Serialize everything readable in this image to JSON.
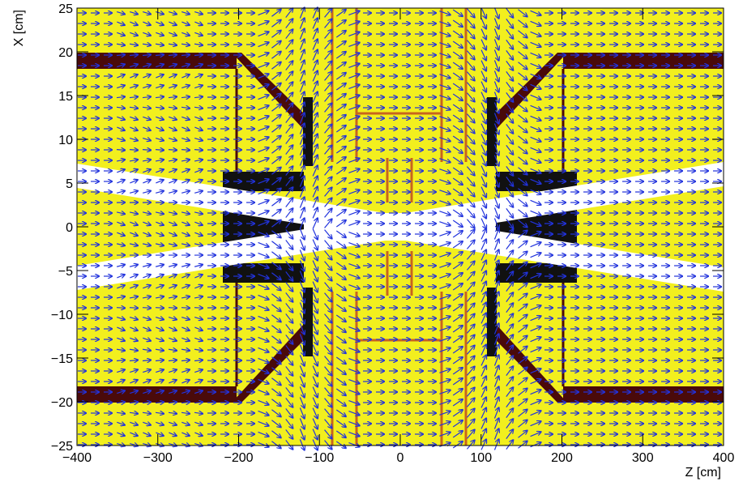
{
  "chart_data": {
    "type": "quiver",
    "xlabel": "Z [cm]",
    "ylabel": "X [cm]",
    "xlim": [
      -400,
      400
    ],
    "ylim": [
      -25,
      25
    ],
    "xticks": [
      {
        "value": -400,
        "label": "−400"
      },
      {
        "value": -300,
        "label": "−300"
      },
      {
        "value": -200,
        "label": "−200"
      },
      {
        "value": -100,
        "label": "−100"
      },
      0,
      100,
      200,
      300,
      400
    ],
    "yticks": [
      {
        "value": -25,
        "label": "−25"
      },
      {
        "value": -20,
        "label": "−20"
      },
      {
        "value": -15,
        "label": "−15"
      },
      {
        "value": -10,
        "label": "−10"
      },
      {
        "value": -5,
        "label": "−5"
      },
      0,
      5,
      10,
      15,
      20,
      25
    ],
    "color": "#2233dd"
  }
}
